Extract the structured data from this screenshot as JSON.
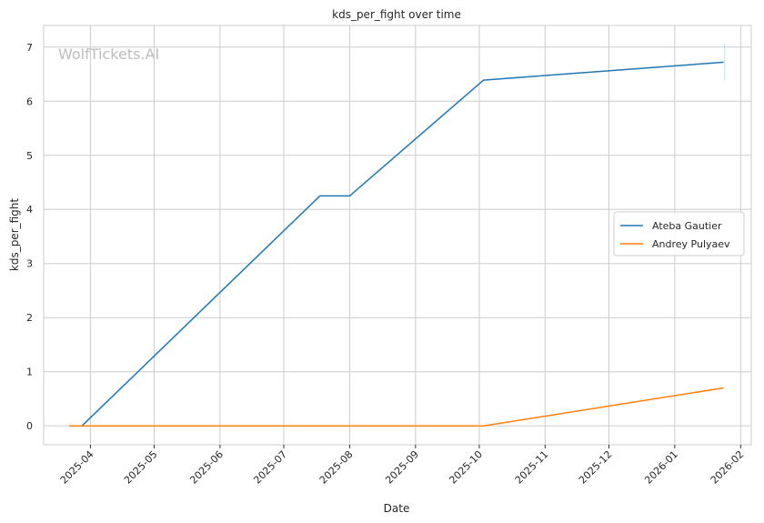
{
  "chart_data": {
    "type": "line",
    "title": "kds_per_fight over time",
    "xlabel": "Date",
    "ylabel": "kds_per_fight",
    "watermark": "WolfTickets.AI",
    "xlim": [
      "2025-03-10",
      "2026-02-06"
    ],
    "ylim": [
      -0.35,
      7.4
    ],
    "x_ticks": [
      "2025-04",
      "2025-05",
      "2025-06",
      "2025-07",
      "2025-08",
      "2025-09",
      "2025-10",
      "2025-11",
      "2025-12",
      "2026-01",
      "2026-02"
    ],
    "y_ticks": [
      0,
      1,
      2,
      3,
      4,
      5,
      6,
      7
    ],
    "grid": true,
    "legend_position": "center-right",
    "series": [
      {
        "name": "Ateba Gautier",
        "color": "#1f77b4",
        "points": [
          {
            "x": "2025-03-28",
            "y": 0.0
          },
          {
            "x": "2025-07-18",
            "y": 4.25
          },
          {
            "x": "2025-08-01",
            "y": 4.25
          },
          {
            "x": "2025-10-03",
            "y": 6.39
          },
          {
            "x": "2026-01-24",
            "y": 6.72
          }
        ]
      },
      {
        "name": "Andrey Pulyaev",
        "color": "#ff7f0e",
        "points": [
          {
            "x": "2025-03-22",
            "y": 0.0
          },
          {
            "x": "2025-10-03",
            "y": 0.0
          },
          {
            "x": "2026-01-24",
            "y": 0.7
          }
        ]
      }
    ]
  }
}
